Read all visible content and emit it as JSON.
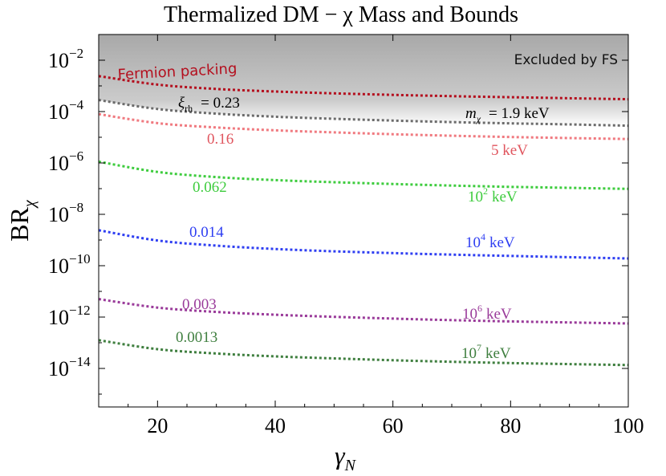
{
  "chart_data": {
    "type": "line",
    "title": "Thermalized DM − χ Mass and Bounds",
    "xlabel": "γ",
    "xlabel_sub": "N",
    "ylabel": "BR",
    "ylabel_sub": "χ",
    "x_scale": "linear",
    "y_scale": "log10",
    "xlim": [
      10,
      100
    ],
    "ylim_log10": [
      -15.5,
      -1
    ],
    "x_ticks": [
      20,
      40,
      60,
      80,
      100
    ],
    "y_ticks_log10": [
      -2,
      -4,
      -6,
      -8,
      -10,
      -12,
      -14
    ],
    "y_tick_base": "10",
    "y_tick_exponents": [
      "−2",
      "−4",
      "−6",
      "−8",
      "−10",
      "−12",
      "−14"
    ],
    "excluded_region": {
      "label": "Excluded by FS",
      "color": "#a8a8a8",
      "lower_bound_series": "1.9 keV"
    },
    "series": [
      {
        "name": "Fermion packing",
        "label": "Fermion packing",
        "color": "#b40f1e",
        "x": [
          10,
          20,
          30,
          40,
          50,
          60,
          70,
          80,
          90,
          100
        ],
        "log10_y": [
          -2.62,
          -2.95,
          -3.12,
          -3.22,
          -3.29,
          -3.35,
          -3.4,
          -3.44,
          -3.48,
          -3.52
        ]
      },
      {
        "name": "1.9 keV",
        "xi_label_prefix": "ξ",
        "xi_label_sub": "rh",
        "xi_value": "= 0.23",
        "mass_label_prefix": "m",
        "mass_label_sub": "χ",
        "mass_value": "= 1.9 keV",
        "color": "#6b6b6b",
        "x": [
          10,
          20,
          30,
          40,
          50,
          60,
          70,
          80,
          90,
          100
        ],
        "log10_y": [
          -3.55,
          -3.9,
          -4.08,
          -4.2,
          -4.28,
          -4.35,
          -4.41,
          -4.46,
          -4.5,
          -4.55
        ]
      },
      {
        "name": "5 keV",
        "xi_label": "0.16",
        "mass_label": "5 keV",
        "color": "#f07a80",
        "x": [
          10,
          20,
          30,
          40,
          50,
          60,
          70,
          80,
          90,
          100
        ],
        "log10_y": [
          -4.1,
          -4.45,
          -4.62,
          -4.73,
          -4.81,
          -4.88,
          -4.94,
          -4.99,
          -5.03,
          -5.07
        ]
      },
      {
        "name": "10^2 keV",
        "xi_label": "0.062",
        "mass_label_base": "10",
        "mass_label_exp": "2",
        "mass_label_unit": "keV",
        "color": "#3ecc3e",
        "x": [
          10,
          20,
          30,
          40,
          50,
          60,
          70,
          80,
          90,
          100
        ],
        "log10_y": [
          -5.95,
          -6.35,
          -6.55,
          -6.67,
          -6.75,
          -6.82,
          -6.88,
          -6.93,
          -6.97,
          -7.01
        ]
      },
      {
        "name": "10^4 keV",
        "xi_label": "0.014",
        "mass_label_base": "10",
        "mass_label_exp": "4",
        "mass_label_unit": "keV",
        "color": "#2f3ff2",
        "x": [
          10,
          20,
          30,
          40,
          50,
          60,
          70,
          80,
          90,
          100
        ],
        "log10_y": [
          -8.62,
          -9.02,
          -9.22,
          -9.35,
          -9.44,
          -9.51,
          -9.57,
          -9.62,
          -9.67,
          -9.72
        ]
      },
      {
        "name": "10^6 keV",
        "xi_label": "0.003",
        "mass_label_base": "10",
        "mass_label_exp": "6",
        "mass_label_unit": "keV",
        "color": "#9a3b9a",
        "x": [
          10,
          20,
          30,
          40,
          50,
          60,
          70,
          80,
          90,
          100
        ],
        "log10_y": [
          -11.3,
          -11.63,
          -11.8,
          -11.91,
          -11.99,
          -12.06,
          -12.12,
          -12.17,
          -12.21,
          -12.25
        ]
      },
      {
        "name": "10^7 keV",
        "xi_label": "0.0013",
        "mass_label_base": "10",
        "mass_label_exp": "7",
        "mass_label_unit": "keV",
        "color": "#3f7f3f",
        "x": [
          10,
          20,
          30,
          40,
          50,
          60,
          70,
          80,
          90,
          100
        ],
        "log10_y": [
          -12.9,
          -13.25,
          -13.42,
          -13.53,
          -13.61,
          -13.68,
          -13.74,
          -13.79,
          -13.83,
          -13.87
        ]
      }
    ]
  }
}
